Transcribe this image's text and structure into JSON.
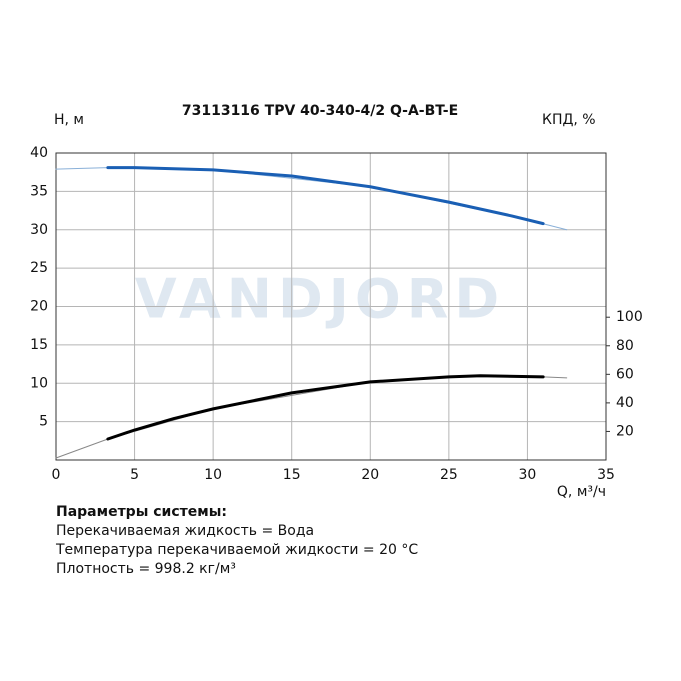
{
  "chart_data": {
    "type": "line",
    "title": "73113116 TPV 40-340-4/2 Q-A-BT-E",
    "y_label": "H, м",
    "y2_label": "КПД, %",
    "x_label": "Q, м³/ч",
    "watermark": "VANDJORD",
    "xlim": [
      0,
      35
    ],
    "xticks": [
      0,
      5,
      10,
      15,
      20,
      25,
      30,
      35
    ],
    "ylim": [
      0,
      40
    ],
    "yticks": [
      5,
      10,
      15,
      20,
      25,
      30,
      35,
      40
    ],
    "y2lim": [
      0,
      215
    ],
    "y2ticks": [
      20,
      40,
      60,
      80,
      100
    ],
    "grid": true,
    "series": [
      {
        "color": "#8ab0d8",
        "width": 1,
        "axis": "y",
        "x": [
          0,
          3.3,
          10,
          20,
          30,
          32.5
        ],
        "values": [
          37.9,
          38.1,
          37.8,
          35.6,
          31.3,
          30.0
        ]
      },
      {
        "color": "#1a5fb4",
        "width": 3,
        "axis": "y",
        "x": [
          3.3,
          5,
          10,
          15,
          20,
          25,
          29,
          31
        ],
        "values": [
          38.1,
          38.1,
          37.8,
          37.0,
          35.6,
          33.6,
          31.8,
          30.8
        ]
      },
      {
        "color": "#888888",
        "width": 1,
        "axis": "y2",
        "x": [
          0,
          3.3,
          10,
          20,
          27,
          31,
          32.5
        ],
        "values": [
          1.4,
          14.7,
          35.8,
          54.7,
          59,
          58.2,
          57.5
        ]
      },
      {
        "color": "#000000",
        "width": 3,
        "axis": "y2",
        "x": [
          3.3,
          5,
          7.5,
          10,
          15,
          20,
          25,
          27,
          31
        ],
        "values": [
          14.7,
          21,
          29,
          35.8,
          47,
          54.7,
          58.2,
          59,
          58.2
        ]
      }
    ]
  },
  "parameters": {
    "heading": "Параметры системы:",
    "lines": [
      "Перекачиваемая жидкость = Вода",
      "Температура перекачиваемой жидкости = 20 °C",
      "Плотность = 998.2 кг/м³"
    ]
  }
}
